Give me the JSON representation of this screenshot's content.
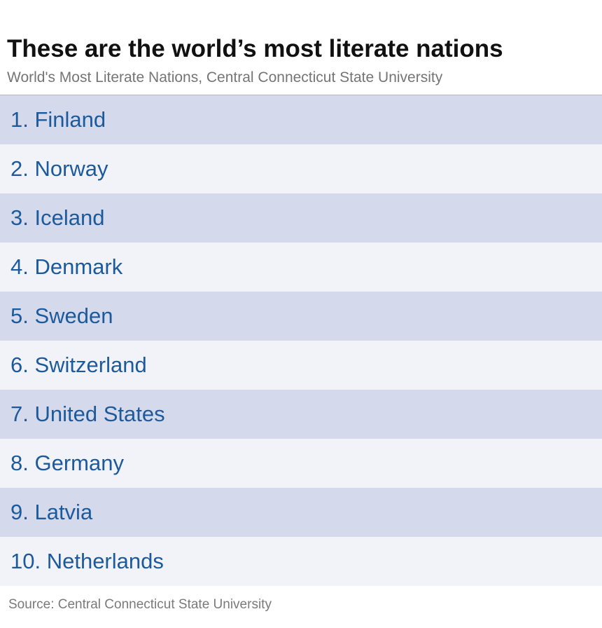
{
  "title": "These are the world’s most literate nations",
  "subtitle": "World's Most Literate Nations, Central Connecticut State University",
  "chart_data": {
    "type": "table",
    "title": "These are the world’s most literate nations",
    "subtitle": "World's Most Literate Nations, Central Connecticut State University",
    "rows": [
      "1. Finland",
      "2. Norway",
      "3. Iceland",
      "4. Denmark",
      "5. Sweden",
      "6. Switzerland",
      "7. United States",
      "8. Germany",
      "9. Latvia",
      "10. Netherlands"
    ],
    "colors": {
      "row_odd": "#d4d9eb",
      "row_even": "#f1f3f9",
      "text": "#1d5a9c"
    }
  },
  "source": "Source: Central Connecticut State University"
}
